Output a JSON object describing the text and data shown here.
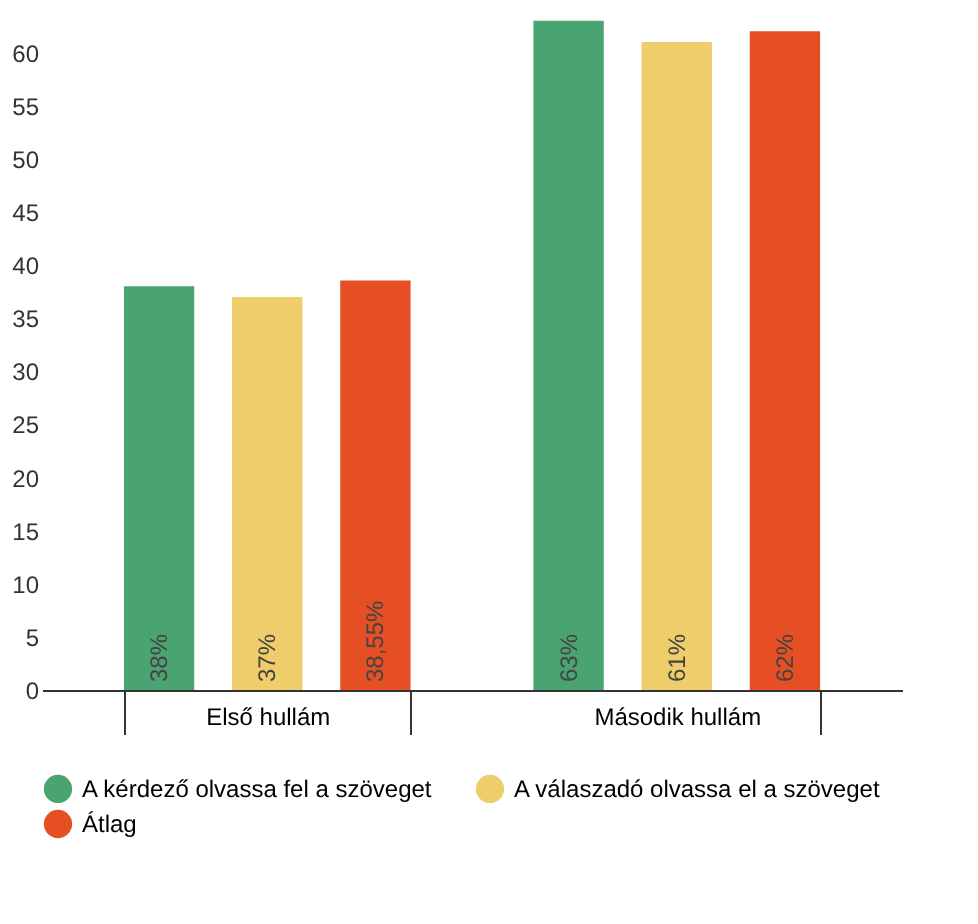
{
  "chart_data": {
    "type": "bar",
    "categories": [
      "Első hullám",
      "Második hullám"
    ],
    "series": [
      {
        "name": "A kérdező olvassa fel a szöveget",
        "color": "#4aa472",
        "values": [
          38,
          63
        ],
        "value_labels": [
          "38%",
          "63%"
        ]
      },
      {
        "name": "A válaszadó olvassa el a szöveget",
        "color": "#f0cd6b",
        "values": [
          37,
          61
        ],
        "value_labels": [
          "37%",
          "61%"
        ]
      },
      {
        "name": "Átlag",
        "color": "#e64f24",
        "values": [
          38.55,
          62
        ],
        "value_labels": [
          "38,55%",
          "62%"
        ]
      }
    ],
    "ylim": [
      0,
      64
    ],
    "yticks": [
      0,
      5,
      10,
      15,
      20,
      25,
      30,
      35,
      40,
      45,
      50,
      55,
      60
    ],
    "grid": false,
    "legend": "bottom"
  }
}
